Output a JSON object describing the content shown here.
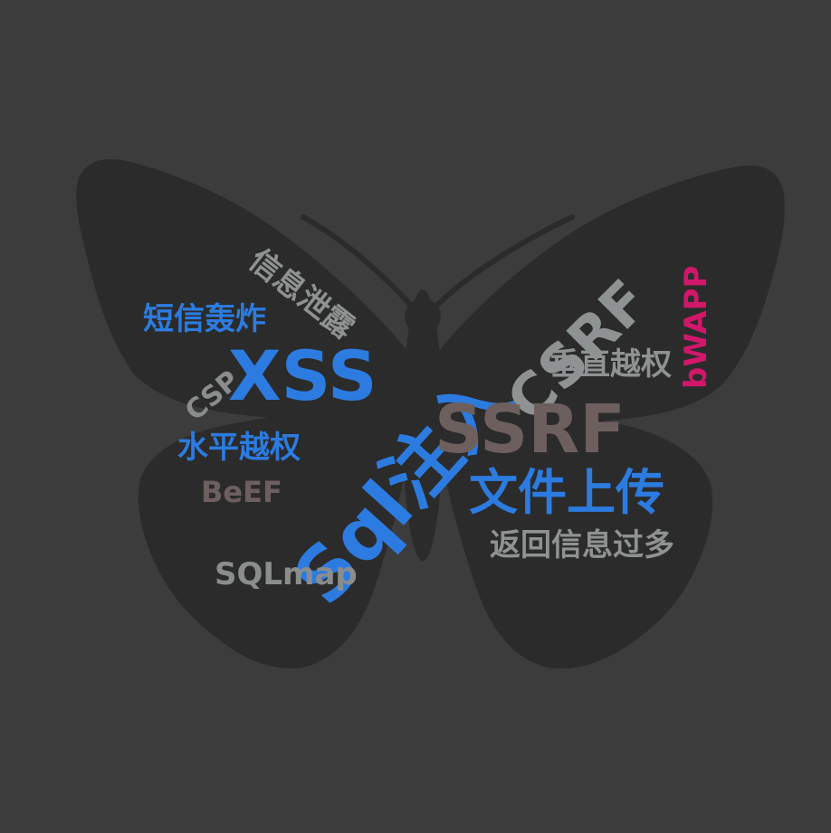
{
  "word_cloud": {
    "background_color": "#3c3c3c",
    "shape": "butterfly",
    "shape_color": "#2b2b2b",
    "words": [
      {
        "text": "信息泄露",
        "color": "#8f9292"
      },
      {
        "text": "短信轰炸",
        "color": "#2c7be0"
      },
      {
        "text": "CSP",
        "color": "#8a8d8d"
      },
      {
        "text": "XSS",
        "color": "#2c7be0"
      },
      {
        "text": "CSRF",
        "color": "#8f9292"
      },
      {
        "text": "垂直越权",
        "color": "#8f9292"
      },
      {
        "text": "bWAPP",
        "color": "#d1176a"
      },
      {
        "text": "Sql注入",
        "color": "#2c7be0"
      },
      {
        "text": "SSRF",
        "color": "#6e5f5f"
      },
      {
        "text": "水平越权",
        "color": "#2c7be0"
      },
      {
        "text": "BeEF",
        "color": "#6e5f5f"
      },
      {
        "text": "文件上传",
        "color": "#2c7be0"
      },
      {
        "text": "返回信息过多",
        "color": "#8f9292"
      },
      {
        "text": "SQLmap",
        "color": "#8a8d8d"
      }
    ]
  }
}
